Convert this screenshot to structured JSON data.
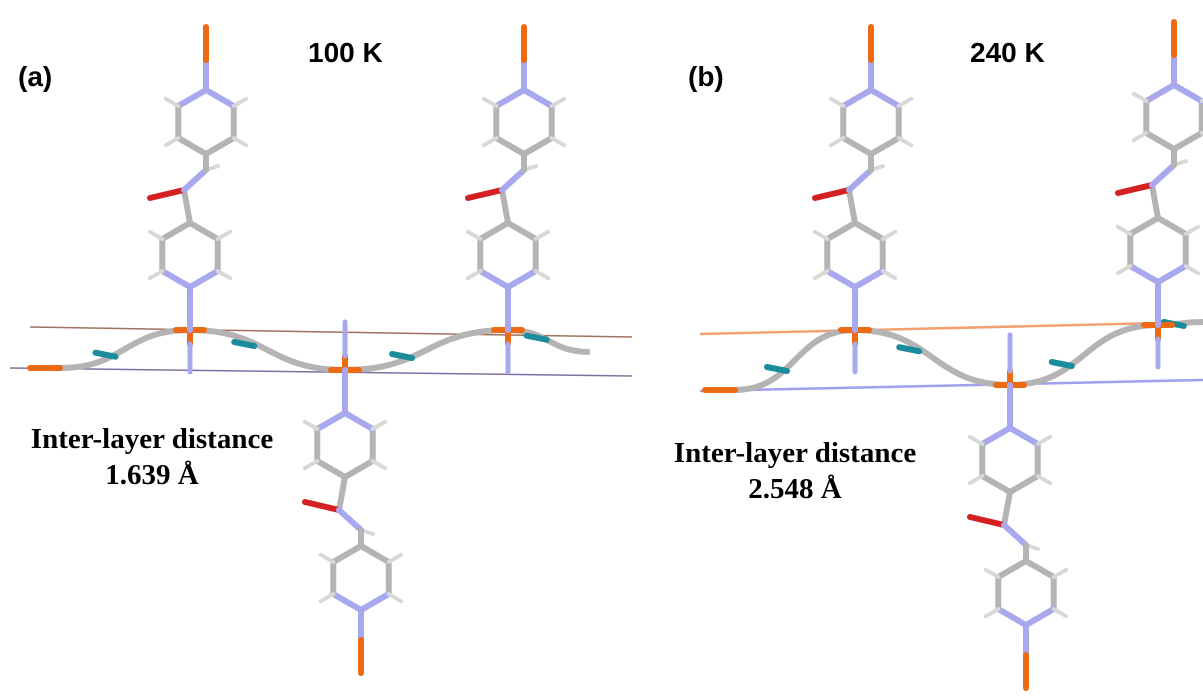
{
  "panels": [
    {
      "label": "(a)",
      "temperature": "100 K",
      "caption": [
        "Inter-layer distance",
        "1.639 Å"
      ]
    },
    {
      "label": "(b)",
      "temperature": "240 K",
      "caption": [
        "Inter-layer distance",
        "2.548 Å"
      ]
    }
  ]
}
